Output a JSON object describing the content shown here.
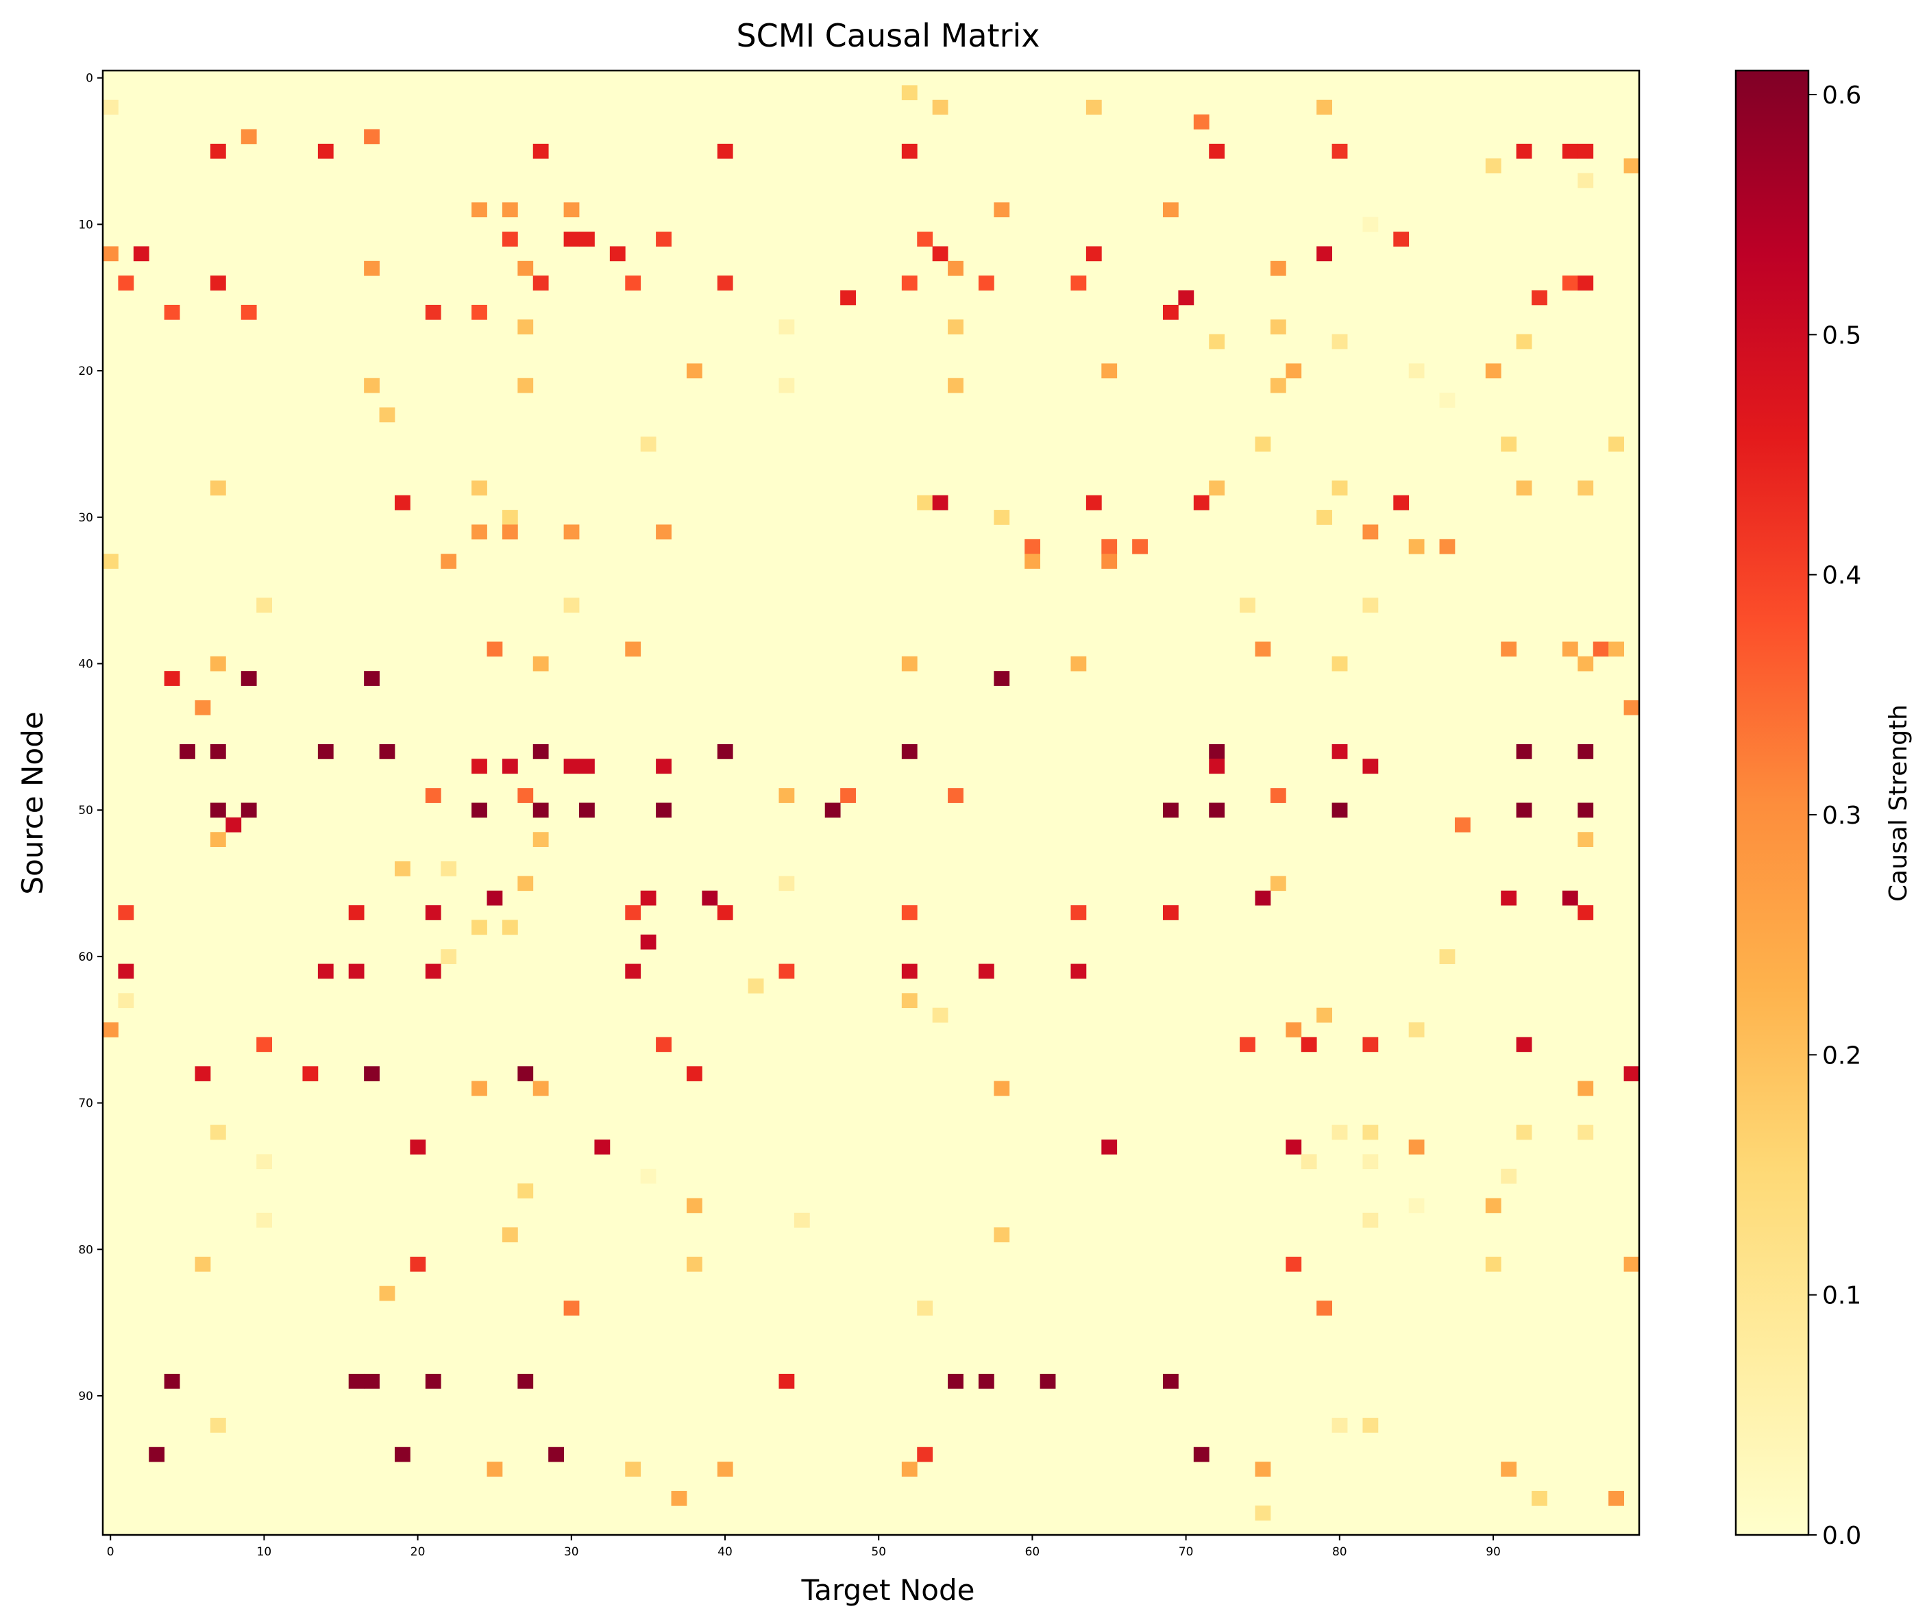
{
  "chart_data": {
    "type": "heatmap",
    "title": "SCMI Causal Matrix",
    "xlabel": "Target Node",
    "ylabel": "Source Node",
    "n": 100,
    "x_ticks": [
      0,
      10,
      20,
      30,
      40,
      50,
      60,
      70,
      80,
      90
    ],
    "y_ticks": [
      0,
      10,
      20,
      30,
      40,
      50,
      60,
      70,
      80,
      90
    ],
    "colorbar": {
      "label": "Causal Strength",
      "vmin": 0.0,
      "vmax": 0.61,
      "ticks": [
        "0.0",
        "0.1",
        "0.2",
        "0.3",
        "0.4",
        "0.5",
        "0.6"
      ],
      "colormap": "YlOrRd",
      "stops": [
        "#ffffcc",
        "#ffeda0",
        "#fed976",
        "#feb24c",
        "#fd8d3c",
        "#fc4e2a",
        "#e31a1c",
        "#bd0026",
        "#800026"
      ]
    },
    "cells": [
      [
        1,
        52,
        0.15
      ],
      [
        2,
        0,
        0.07
      ],
      [
        2,
        54,
        0.18
      ],
      [
        2,
        64,
        0.18
      ],
      [
        2,
        79,
        0.2
      ],
      [
        3,
        71,
        0.33
      ],
      [
        4,
        9,
        0.3
      ],
      [
        4,
        17,
        0.33
      ],
      [
        5,
        7,
        0.45
      ],
      [
        5,
        14,
        0.45
      ],
      [
        5,
        28,
        0.45
      ],
      [
        5,
        40,
        0.45
      ],
      [
        5,
        52,
        0.45
      ],
      [
        5,
        72,
        0.45
      ],
      [
        5,
        80,
        0.42
      ],
      [
        5,
        92,
        0.45
      ],
      [
        5,
        95,
        0.45
      ],
      [
        5,
        96,
        0.45
      ],
      [
        6,
        90,
        0.14
      ],
      [
        6,
        99,
        0.22
      ],
      [
        7,
        96,
        0.07
      ],
      [
        9,
        24,
        0.28
      ],
      [
        9,
        26,
        0.28
      ],
      [
        9,
        30,
        0.28
      ],
      [
        9,
        58,
        0.28
      ],
      [
        9,
        69,
        0.28
      ],
      [
        10,
        82,
        0.03
      ],
      [
        11,
        26,
        0.4
      ],
      [
        11,
        30,
        0.45
      ],
      [
        11,
        31,
        0.45
      ],
      [
        11,
        36,
        0.4
      ],
      [
        11,
        53,
        0.38
      ],
      [
        11,
        84,
        0.42
      ],
      [
        12,
        0,
        0.3
      ],
      [
        12,
        2,
        0.48
      ],
      [
        12,
        33,
        0.45
      ],
      [
        12,
        54,
        0.45
      ],
      [
        12,
        64,
        0.45
      ],
      [
        12,
        79,
        0.5
      ],
      [
        13,
        17,
        0.28
      ],
      [
        13,
        27,
        0.28
      ],
      [
        13,
        55,
        0.28
      ],
      [
        13,
        76,
        0.28
      ],
      [
        14,
        1,
        0.38
      ],
      [
        14,
        7,
        0.45
      ],
      [
        14,
        28,
        0.42
      ],
      [
        14,
        34,
        0.38
      ],
      [
        14,
        40,
        0.42
      ],
      [
        14,
        52,
        0.38
      ],
      [
        14,
        57,
        0.38
      ],
      [
        14,
        63,
        0.38
      ],
      [
        14,
        95,
        0.38
      ],
      [
        14,
        96,
        0.45
      ],
      [
        15,
        48,
        0.45
      ],
      [
        15,
        70,
        0.5
      ],
      [
        15,
        93,
        0.42
      ],
      [
        16,
        4,
        0.38
      ],
      [
        16,
        9,
        0.38
      ],
      [
        16,
        21,
        0.42
      ],
      [
        16,
        24,
        0.38
      ],
      [
        16,
        69,
        0.45
      ],
      [
        17,
        27,
        0.2
      ],
      [
        17,
        44,
        0.05
      ],
      [
        17,
        55,
        0.18
      ],
      [
        17,
        76,
        0.18
      ],
      [
        18,
        72,
        0.15
      ],
      [
        18,
        80,
        0.1
      ],
      [
        18,
        92,
        0.15
      ],
      [
        20,
        38,
        0.25
      ],
      [
        20,
        65,
        0.25
      ],
      [
        20,
        77,
        0.25
      ],
      [
        20,
        85,
        0.05
      ],
      [
        20,
        90,
        0.25
      ],
      [
        21,
        17,
        0.2
      ],
      [
        21,
        27,
        0.2
      ],
      [
        21,
        44,
        0.05
      ],
      [
        21,
        55,
        0.2
      ],
      [
        21,
        76,
        0.2
      ],
      [
        22,
        87,
        0.03
      ],
      [
        23,
        18,
        0.18
      ],
      [
        25,
        35,
        0.1
      ],
      [
        25,
        75,
        0.15
      ],
      [
        25,
        91,
        0.15
      ],
      [
        25,
        98,
        0.15
      ],
      [
        28,
        7,
        0.18
      ],
      [
        28,
        24,
        0.18
      ],
      [
        28,
        72,
        0.2
      ],
      [
        28,
        80,
        0.15
      ],
      [
        28,
        92,
        0.2
      ],
      [
        28,
        96,
        0.18
      ],
      [
        29,
        19,
        0.45
      ],
      [
        29,
        53,
        0.15
      ],
      [
        29,
        54,
        0.5
      ],
      [
        29,
        64,
        0.45
      ],
      [
        29,
        71,
        0.45
      ],
      [
        29,
        84,
        0.45
      ],
      [
        30,
        26,
        0.15
      ],
      [
        30,
        58,
        0.15
      ],
      [
        30,
        79,
        0.15
      ],
      [
        31,
        24,
        0.28
      ],
      [
        31,
        26,
        0.3
      ],
      [
        31,
        30,
        0.28
      ],
      [
        31,
        36,
        0.28
      ],
      [
        31,
        82,
        0.3
      ],
      [
        32,
        60,
        0.35
      ],
      [
        32,
        65,
        0.35
      ],
      [
        32,
        67,
        0.35
      ],
      [
        32,
        85,
        0.22
      ],
      [
        32,
        87,
        0.3
      ],
      [
        33,
        0,
        0.15
      ],
      [
        33,
        22,
        0.28
      ],
      [
        33,
        60,
        0.25
      ],
      [
        33,
        65,
        0.3
      ],
      [
        36,
        10,
        0.1
      ],
      [
        36,
        30,
        0.1
      ],
      [
        36,
        74,
        0.1
      ],
      [
        36,
        82,
        0.1
      ],
      [
        39,
        25,
        0.33
      ],
      [
        39,
        34,
        0.28
      ],
      [
        39,
        75,
        0.3
      ],
      [
        39,
        91,
        0.3
      ],
      [
        39,
        95,
        0.25
      ],
      [
        39,
        97,
        0.35
      ],
      [
        39,
        98,
        0.22
      ],
      [
        40,
        7,
        0.22
      ],
      [
        40,
        28,
        0.22
      ],
      [
        40,
        52,
        0.22
      ],
      [
        40,
        63,
        0.22
      ],
      [
        40,
        80,
        0.15
      ],
      [
        40,
        96,
        0.22
      ],
      [
        41,
        4,
        0.45
      ],
      [
        41,
        9,
        0.6
      ],
      [
        41,
        17,
        0.6
      ],
      [
        41,
        58,
        0.6
      ],
      [
        43,
        6,
        0.3
      ],
      [
        43,
        99,
        0.3
      ],
      [
        46,
        5,
        0.6
      ],
      [
        46,
        7,
        0.6
      ],
      [
        46,
        14,
        0.6
      ],
      [
        46,
        18,
        0.6
      ],
      [
        46,
        28,
        0.6
      ],
      [
        46,
        40,
        0.6
      ],
      [
        46,
        52,
        0.6
      ],
      [
        46,
        72,
        0.6
      ],
      [
        46,
        80,
        0.5
      ],
      [
        46,
        92,
        0.6
      ],
      [
        46,
        96,
        0.6
      ],
      [
        47,
        24,
        0.48
      ],
      [
        47,
        26,
        0.5
      ],
      [
        47,
        30,
        0.5
      ],
      [
        47,
        31,
        0.5
      ],
      [
        47,
        36,
        0.5
      ],
      [
        47,
        72,
        0.5
      ],
      [
        47,
        82,
        0.5
      ],
      [
        49,
        21,
        0.35
      ],
      [
        49,
        27,
        0.35
      ],
      [
        49,
        44,
        0.22
      ],
      [
        49,
        48,
        0.35
      ],
      [
        49,
        55,
        0.35
      ],
      [
        49,
        76,
        0.35
      ],
      [
        50,
        7,
        0.6
      ],
      [
        50,
        9,
        0.6
      ],
      [
        50,
        24,
        0.6
      ],
      [
        50,
        28,
        0.6
      ],
      [
        50,
        31,
        0.6
      ],
      [
        50,
        36,
        0.6
      ],
      [
        50,
        47,
        0.6
      ],
      [
        50,
        69,
        0.6
      ],
      [
        50,
        72,
        0.6
      ],
      [
        50,
        80,
        0.6
      ],
      [
        50,
        92,
        0.6
      ],
      [
        50,
        96,
        0.6
      ],
      [
        51,
        8,
        0.5
      ],
      [
        51,
        88,
        0.33
      ],
      [
        52,
        7,
        0.22
      ],
      [
        52,
        28,
        0.2
      ],
      [
        52,
        96,
        0.2
      ],
      [
        54,
        19,
        0.18
      ],
      [
        54,
        22,
        0.1
      ],
      [
        55,
        27,
        0.2
      ],
      [
        55,
        44,
        0.07
      ],
      [
        55,
        76,
        0.2
      ],
      [
        56,
        25,
        0.55
      ],
      [
        56,
        35,
        0.5
      ],
      [
        56,
        39,
        0.55
      ],
      [
        56,
        75,
        0.55
      ],
      [
        56,
        91,
        0.5
      ],
      [
        56,
        95,
        0.55
      ],
      [
        57,
        1,
        0.4
      ],
      [
        57,
        16,
        0.45
      ],
      [
        57,
        21,
        0.5
      ],
      [
        57,
        34,
        0.4
      ],
      [
        57,
        40,
        0.45
      ],
      [
        57,
        52,
        0.38
      ],
      [
        57,
        63,
        0.4
      ],
      [
        57,
        69,
        0.45
      ],
      [
        57,
        96,
        0.45
      ],
      [
        58,
        24,
        0.15
      ],
      [
        58,
        26,
        0.15
      ],
      [
        59,
        35,
        0.52
      ],
      [
        60,
        22,
        0.1
      ],
      [
        60,
        87,
        0.12
      ],
      [
        61,
        1,
        0.5
      ],
      [
        61,
        14,
        0.5
      ],
      [
        61,
        16,
        0.5
      ],
      [
        61,
        21,
        0.5
      ],
      [
        61,
        34,
        0.5
      ],
      [
        61,
        44,
        0.4
      ],
      [
        61,
        52,
        0.5
      ],
      [
        61,
        57,
        0.5
      ],
      [
        61,
        63,
        0.5
      ],
      [
        62,
        42,
        0.12
      ],
      [
        63,
        1,
        0.07
      ],
      [
        63,
        52,
        0.18
      ],
      [
        64,
        54,
        0.1
      ],
      [
        64,
        79,
        0.2
      ],
      [
        65,
        0,
        0.28
      ],
      [
        65,
        77,
        0.28
      ],
      [
        65,
        85,
        0.12
      ],
      [
        66,
        10,
        0.38
      ],
      [
        66,
        36,
        0.4
      ],
      [
        66,
        74,
        0.4
      ],
      [
        66,
        78,
        0.45
      ],
      [
        66,
        82,
        0.42
      ],
      [
        66,
        92,
        0.5
      ],
      [
        68,
        6,
        0.48
      ],
      [
        68,
        13,
        0.45
      ],
      [
        68,
        17,
        0.6
      ],
      [
        68,
        27,
        0.6
      ],
      [
        68,
        38,
        0.45
      ],
      [
        68,
        99,
        0.5
      ],
      [
        69,
        24,
        0.25
      ],
      [
        69,
        28,
        0.25
      ],
      [
        69,
        58,
        0.25
      ],
      [
        69,
        96,
        0.25
      ],
      [
        72,
        7,
        0.12
      ],
      [
        72,
        80,
        0.07
      ],
      [
        72,
        82,
        0.12
      ],
      [
        72,
        92,
        0.12
      ],
      [
        72,
        96,
        0.1
      ],
      [
        73,
        20,
        0.5
      ],
      [
        73,
        32,
        0.52
      ],
      [
        73,
        65,
        0.52
      ],
      [
        73,
        77,
        0.52
      ],
      [
        73,
        85,
        0.28
      ],
      [
        74,
        10,
        0.05
      ],
      [
        74,
        78,
        0.07
      ],
      [
        74,
        82,
        0.05
      ],
      [
        75,
        35,
        0.03
      ],
      [
        75,
        91,
        0.07
      ],
      [
        76,
        27,
        0.15
      ],
      [
        77,
        38,
        0.22
      ],
      [
        77,
        85,
        0.03
      ],
      [
        77,
        90,
        0.22
      ],
      [
        78,
        10,
        0.05
      ],
      [
        78,
        45,
        0.07
      ],
      [
        78,
        82,
        0.07
      ],
      [
        79,
        26,
        0.18
      ],
      [
        79,
        58,
        0.18
      ],
      [
        81,
        6,
        0.18
      ],
      [
        81,
        20,
        0.42
      ],
      [
        81,
        38,
        0.18
      ],
      [
        81,
        77,
        0.4
      ],
      [
        81,
        90,
        0.15
      ],
      [
        81,
        99,
        0.25
      ],
      [
        83,
        18,
        0.2
      ],
      [
        84,
        30,
        0.33
      ],
      [
        84,
        53,
        0.1
      ],
      [
        84,
        79,
        0.33
      ],
      [
        89,
        4,
        0.6
      ],
      [
        89,
        16,
        0.6
      ],
      [
        89,
        17,
        0.6
      ],
      [
        89,
        21,
        0.6
      ],
      [
        89,
        27,
        0.6
      ],
      [
        89,
        44,
        0.45
      ],
      [
        89,
        55,
        0.6
      ],
      [
        89,
        57,
        0.6
      ],
      [
        89,
        61,
        0.6
      ],
      [
        89,
        69,
        0.6
      ],
      [
        92,
        7,
        0.12
      ],
      [
        92,
        80,
        0.07
      ],
      [
        92,
        82,
        0.12
      ],
      [
        94,
        3,
        0.6
      ],
      [
        94,
        19,
        0.6
      ],
      [
        94,
        29,
        0.6
      ],
      [
        94,
        53,
        0.42
      ],
      [
        94,
        71,
        0.6
      ],
      [
        95,
        25,
        0.25
      ],
      [
        95,
        34,
        0.18
      ],
      [
        95,
        40,
        0.25
      ],
      [
        95,
        52,
        0.25
      ],
      [
        95,
        75,
        0.25
      ],
      [
        95,
        91,
        0.25
      ],
      [
        97,
        37,
        0.25
      ],
      [
        97,
        93,
        0.15
      ],
      [
        97,
        98,
        0.28
      ],
      [
        98,
        75,
        0.12
      ]
    ]
  }
}
